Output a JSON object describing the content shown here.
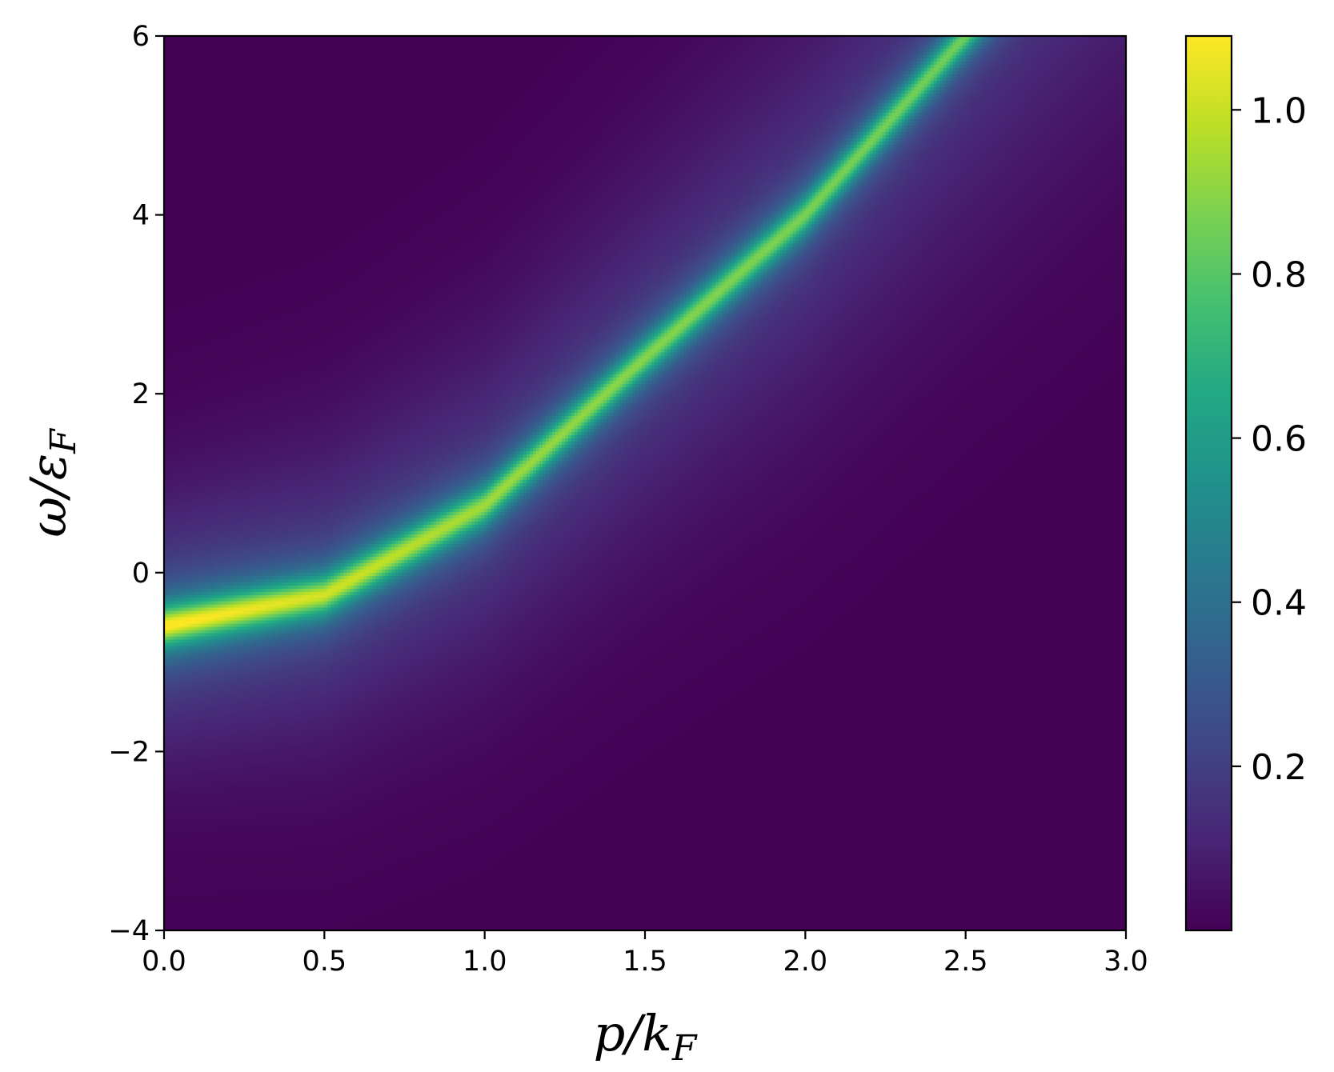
{
  "chart_data": {
    "type": "heatmap",
    "title": "",
    "xlabel": {
      "main": "p/k",
      "sub": "F"
    },
    "ylabel": {
      "main": "ω/ε",
      "sub": "F"
    },
    "xlim": [
      0.0,
      3.0
    ],
    "ylim": [
      -4,
      6
    ],
    "x_ticks": [
      0.0,
      0.5,
      1.0,
      1.5,
      2.0,
      2.5,
      3.0
    ],
    "x_tick_labels": [
      "0.0",
      "0.5",
      "1.0",
      "1.5",
      "2.0",
      "2.5",
      "3.0"
    ],
    "y_ticks": [
      -4,
      -2,
      0,
      2,
      4,
      6
    ],
    "y_tick_labels": [
      "−4",
      "−2",
      "0",
      "2",
      "4",
      "6"
    ],
    "colorbar": {
      "range": [
        0.0,
        1.09
      ],
      "ticks": [
        0.2,
        0.4,
        0.6,
        0.8,
        1.0
      ],
      "tick_labels": [
        "0.2",
        "0.4",
        "0.6",
        "0.8",
        "1.0"
      ],
      "colormap": "viridis"
    },
    "ridge": {
      "description": "peak of intensity follows a parabolic dispersion",
      "points": [
        {
          "x": 0.0,
          "y": -0.6,
          "peak": 1.07
        },
        {
          "x": 0.5,
          "y": -0.25,
          "peak": 0.98
        },
        {
          "x": 1.0,
          "y": 0.75,
          "peak": 0.9
        },
        {
          "x": 1.5,
          "y": 2.4,
          "peak": 0.86
        },
        {
          "x": 2.0,
          "y": 4.0,
          "peak": 0.84
        },
        {
          "x": 2.5,
          "y": 6.0,
          "peak": 0.82
        }
      ]
    },
    "grid": false,
    "legend": "none"
  }
}
